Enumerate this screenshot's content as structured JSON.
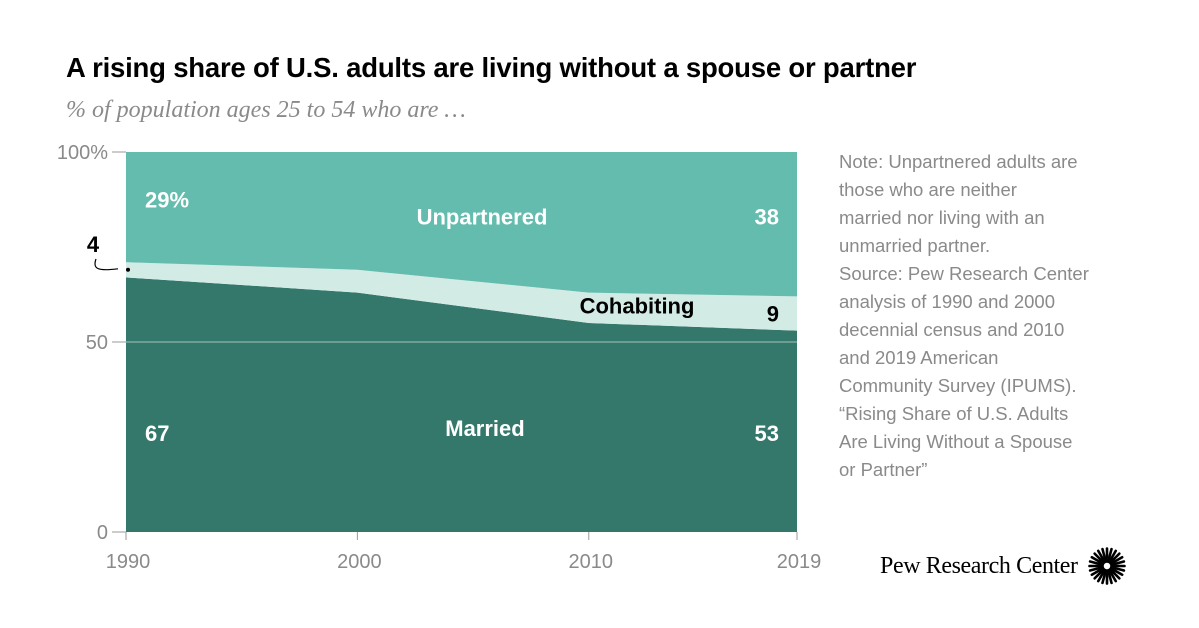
{
  "title": "A rising share of U.S. adults are living without a spouse or partner",
  "subtitle": "% of population ages 25 to 54 who are …",
  "note_lines": [
    "Note: Unpartnered adults are",
    "those who are neither",
    "married nor living with an",
    "unmarried partner.",
    "Source: Pew Research Center",
    "analysis of 1990 and 2000",
    "decennial census and 2010",
    "and 2019 American",
    "Community Survey (IPUMS).",
    "“Rising Share of U.S. Adults",
    "Are Living Without a Spouse",
    "or Partner”"
  ],
  "branding": {
    "name": "Pew Research Center",
    "logo_icon": "pew-sunburst-icon"
  },
  "colors": {
    "married": "#33786a",
    "cohabiting": "#d2ebe5",
    "unpartnered": "#63bcad",
    "axis_text": "#8a8a8a"
  },
  "chart_data": {
    "type": "area",
    "stacked": true,
    "x": [
      1990,
      2000,
      2010,
      2019
    ],
    "x_tick_labels": [
      "1990",
      "2000",
      "2010",
      "2019"
    ],
    "ylim": [
      0,
      100
    ],
    "y_ticks": [
      0,
      50,
      100
    ],
    "y_tick_labels": [
      "0",
      "50",
      "100%"
    ],
    "grid": false,
    "series": [
      {
        "name": "Married",
        "values": [
          67,
          63,
          55,
          53
        ]
      },
      {
        "name": "Cohabiting",
        "values": [
          4,
          6,
          8,
          9
        ]
      },
      {
        "name": "Unpartnered",
        "values": [
          29,
          31,
          37,
          38
        ]
      }
    ],
    "series_labels": {
      "married": "Married",
      "cohabiting": "Cohabiting",
      "unpartnered": "Unpartnered"
    },
    "data_labels": {
      "unpartnered_1990": "29%",
      "unpartnered_2019": "38",
      "cohabiting_1990": "4",
      "cohabiting_2019": "9",
      "married_1990": "67",
      "married_2019": "53"
    }
  }
}
